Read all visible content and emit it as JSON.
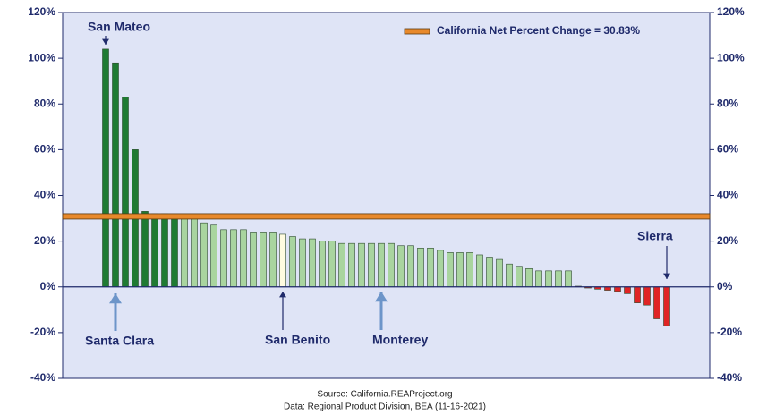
{
  "chart_data": {
    "type": "bar",
    "legend_label": "California Net Percent Change = 30.83%",
    "reference_value": 30.83,
    "reference_color": "#e8892b",
    "values": [
      104,
      98,
      83,
      60,
      33,
      32,
      32,
      31,
      30,
      30,
      28,
      27,
      25,
      25,
      25,
      24,
      24,
      24,
      23,
      22,
      21,
      21,
      20,
      20,
      19,
      19,
      19,
      19,
      19,
      19,
      18,
      18,
      17,
      17,
      16,
      15,
      15,
      15,
      14,
      13,
      12,
      10,
      9,
      8,
      7,
      7,
      7,
      7,
      0.3,
      -0.5,
      -1,
      -1.5,
      -2,
      -3,
      -7,
      -8,
      -14,
      -17
    ],
    "colors": [
      "#1f7a32",
      "#1f7a32",
      "#1f7a32",
      "#1f7a32",
      "#1f7a32",
      "#1f7a32",
      "#1f7a32",
      "#1f7a32",
      "#a9d59f",
      "#a9d59f",
      "#a9d59f",
      "#a9d59f",
      "#a9d59f",
      "#a9d59f",
      "#a9d59f",
      "#a9d59f",
      "#a9d59f",
      "#a9d59f",
      "#fffbe0",
      "#a9d59f",
      "#a9d59f",
      "#a9d59f",
      "#a9d59f",
      "#a9d59f",
      "#a9d59f",
      "#a9d59f",
      "#a9d59f",
      "#a9d59f",
      "#a9d59f",
      "#a9d59f",
      "#a9d59f",
      "#a9d59f",
      "#a9d59f",
      "#a9d59f",
      "#a9d59f",
      "#a9d59f",
      "#a9d59f",
      "#a9d59f",
      "#a9d59f",
      "#a9d59f",
      "#a9d59f",
      "#a9d59f",
      "#a9d59f",
      "#a9d59f",
      "#a9d59f",
      "#a9d59f",
      "#a9d59f",
      "#a9d59f",
      "#e02424",
      "#e02424",
      "#e02424",
      "#e02424",
      "#e02424",
      "#e02424",
      "#e02424",
      "#e02424",
      "#e02424",
      "#e02424"
    ],
    "annotations": [
      "San Mateo",
      "Santa Clara",
      "San Benito",
      "Monterey",
      "Sierra"
    ],
    "source": "Source: California.REAProject.org",
    "data_note": "Data: Regional Product Division, BEA (11-16-2021)",
    "ylim": [
      -40,
      120
    ],
    "yticks": [
      {
        "value": -40,
        "label": "-40%"
      },
      {
        "value": -20,
        "label": "-20%"
      },
      {
        "value": 0,
        "label": "0%"
      },
      {
        "value": 20,
        "label": "20%"
      },
      {
        "value": 40,
        "label": "40%"
      },
      {
        "value": 60,
        "label": "60%"
      },
      {
        "value": 80,
        "label": "80%"
      },
      {
        "value": 100,
        "label": "100%"
      },
      {
        "value": 120,
        "label": "120%"
      }
    ],
    "y2lim": [
      -40,
      120
    ],
    "y2ticks": [
      {
        "value": -40,
        "label": "-40%"
      },
      {
        "value": -20,
        "label": "-20%"
      },
      {
        "value": 0,
        "label": "0%"
      },
      {
        "value": 20,
        "label": "20%"
      },
      {
        "value": 40,
        "label": "40%"
      },
      {
        "value": 60,
        "label": "60%"
      },
      {
        "value": 80,
        "label": "80%"
      },
      {
        "value": 100,
        "label": "100%"
      },
      {
        "value": 120,
        "label": "120%"
      }
    ]
  }
}
